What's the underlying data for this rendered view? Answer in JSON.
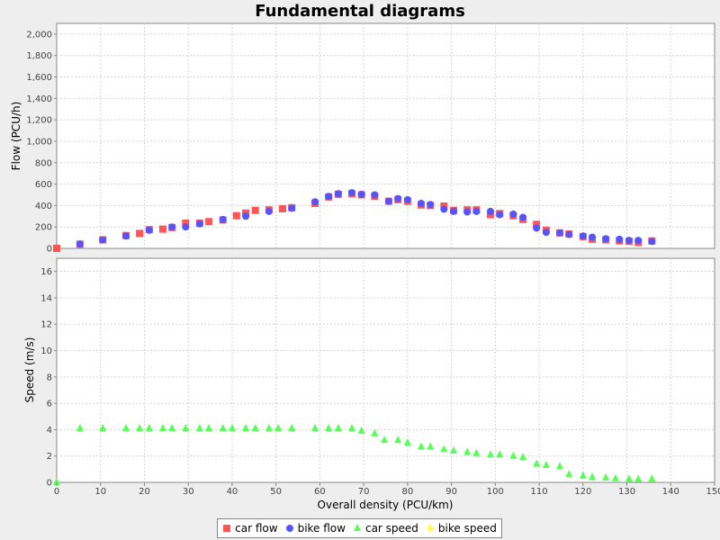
{
  "chart_data": {
    "title": "Fundamental diagrams",
    "xlabel": "Overall density (PCU/km)",
    "xlim": [
      0,
      150
    ],
    "xticks": [
      0,
      10,
      20,
      30,
      40,
      50,
      60,
      70,
      80,
      90,
      100,
      110,
      120,
      130,
      140,
      150
    ],
    "grid": true,
    "legend_position": "bottom",
    "panels": [
      {
        "type": "scatter",
        "ylabel": "Flow (PCU/h)",
        "ylim": [
          0,
          2100
        ],
        "yticks": [
          "0",
          "200",
          "400",
          "600",
          "800",
          "1,000",
          "1,200",
          "1,400",
          "1,600",
          "1,800",
          "2,000"
        ],
        "series": [
          {
            "name": "car flow",
            "marker": "square",
            "color": "#ff5555",
            "x": [
              0,
              5.3,
              10.5,
              15.8,
              18.9,
              21.1,
              24.2,
              26.3,
              29.4,
              32.6,
              34.7,
              37.9,
              41.0,
              43.1,
              45.3,
              48.4,
              51.5,
              53.6,
              58.9,
              62.0,
              64.2,
              67.3,
              69.5,
              72.5,
              75.7,
              77.8,
              80.0,
              83.1,
              85.2,
              88.3,
              90.5,
              93.6,
              95.7,
              98.9,
              101.0,
              104.1,
              106.3,
              109.4,
              111.6,
              114.7,
              116.8,
              120.0,
              122.1,
              125.2,
              128.3,
              130.5,
              132.6,
              135.7
            ],
            "y": [
              0,
              40,
              80,
              120,
              140,
              175,
              180,
              195,
              235,
              235,
              250,
              265,
              305,
              330,
              355,
              360,
              370,
              380,
              420,
              480,
              505,
              510,
              500,
              485,
              440,
              455,
              440,
              405,
              400,
              395,
              355,
              360,
              360,
              315,
              325,
              305,
              270,
              225,
              170,
              145,
              135,
              110,
              85,
              80,
              70,
              65,
              55,
              70
            ]
          },
          {
            "name": "bike flow",
            "marker": "circle",
            "color": "#5555ff",
            "x": [
              5.3,
              10.5,
              15.8,
              21.1,
              26.3,
              29.4,
              32.6,
              37.9,
              43.1,
              48.4,
              53.6,
              58.9,
              62.0,
              64.2,
              67.3,
              69.5,
              72.5,
              75.7,
              77.8,
              80.0,
              83.1,
              85.2,
              88.3,
              90.5,
              93.6,
              95.7,
              98.9,
              101.0,
              104.1,
              106.3,
              109.4,
              111.6,
              114.7,
              116.8,
              120.0,
              122.1,
              125.2,
              128.3,
              130.5,
              132.6,
              135.7
            ],
            "y": [
              40,
              80,
              115,
              170,
              200,
              200,
              230,
              270,
              300,
              345,
              375,
              435,
              485,
              510,
              520,
              505,
              500,
              440,
              465,
              455,
              420,
              410,
              365,
              345,
              340,
              345,
              345,
              315,
              320,
              290,
              190,
              150,
              145,
              130,
              115,
              105,
              90,
              85,
              75,
              75,
              65
            ]
          }
        ]
      },
      {
        "type": "scatter",
        "ylabel": "Speed (m/s)",
        "ylim": [
          0,
          17
        ],
        "yticks": [
          "0",
          "2",
          "4",
          "6",
          "8",
          "10",
          "12",
          "14",
          "16"
        ],
        "series": [
          {
            "name": "car speed",
            "marker": "triangle",
            "color": "#55ff55",
            "x": [
              0,
              5.3,
              10.5,
              15.8,
              18.9,
              21.1,
              24.2,
              26.3,
              29.4,
              32.6,
              34.7,
              37.9,
              40.0,
              43.1,
              45.3,
              48.4,
              50.5,
              53.6,
              58.9,
              62.0,
              64.2,
              67.3,
              69.5,
              72.5,
              74.7,
              77.8,
              80.0,
              83.1,
              85.2,
              88.3,
              90.5,
              93.6,
              95.7,
              98.9,
              101.0,
              104.1,
              106.3,
              109.4,
              111.6,
              114.7,
              116.8,
              120.0,
              122.1,
              125.2,
              127.4,
              130.5,
              132.6,
              135.7
            ],
            "y": [
              0,
              4.1,
              4.1,
              4.1,
              4.1,
              4.1,
              4.1,
              4.1,
              4.1,
              4.1,
              4.1,
              4.1,
              4.1,
              4.1,
              4.1,
              4.1,
              4.1,
              4.1,
              4.1,
              4.1,
              4.1,
              4.1,
              3.9,
              3.7,
              3.2,
              3.2,
              3.0,
              2.7,
              2.7,
              2.5,
              2.4,
              2.3,
              2.2,
              2.1,
              2.1,
              2.0,
              1.9,
              1.4,
              1.3,
              1.2,
              0.6,
              0.5,
              0.4,
              0.35,
              0.3,
              0.25,
              0.25,
              0.25
            ]
          },
          {
            "name": "bike speed",
            "marker": "diamond",
            "color": "#ffff55",
            "x": [],
            "y": []
          }
        ]
      }
    ]
  },
  "legend": [
    {
      "name": "car flow",
      "marker": "square",
      "color": "#ff5555"
    },
    {
      "name": "bike flow",
      "marker": "circle",
      "color": "#5555ff"
    },
    {
      "name": "car speed",
      "marker": "triangle",
      "color": "#55ff55"
    },
    {
      "name": "bike speed",
      "marker": "diamond",
      "color": "#ffff55"
    }
  ]
}
